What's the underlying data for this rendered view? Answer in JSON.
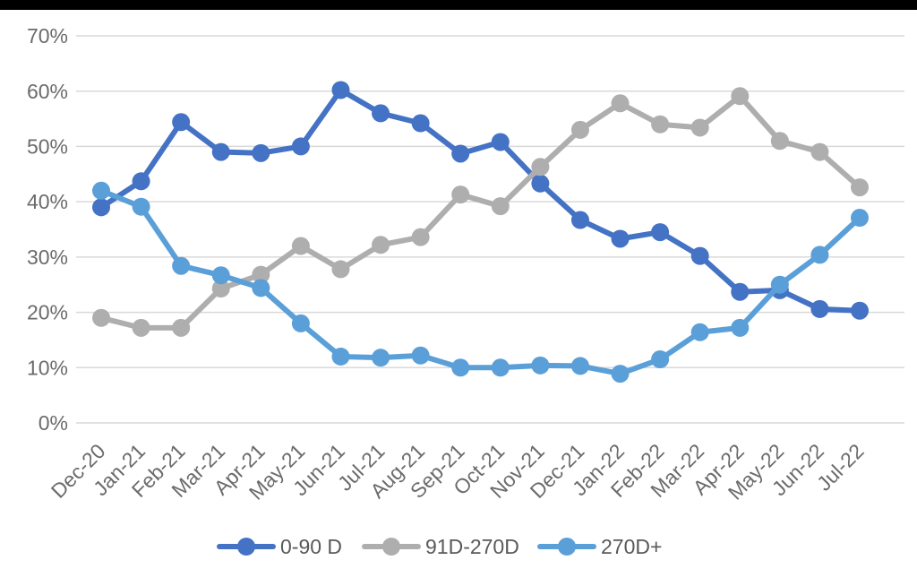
{
  "page": {
    "background_color": "#ffffff",
    "top_bar_color": "#000000"
  },
  "chart_data": {
    "type": "line",
    "title": "",
    "xlabel": "",
    "ylabel": "",
    "categories": [
      "Dec-20",
      "Jan-21",
      "Feb-21",
      "Mar-21",
      "Apr-21",
      "May-21",
      "Jun-21",
      "Jul-21",
      "Aug-21",
      "Sep-21",
      "Oct-21",
      "Nov-21",
      "Dec-21",
      "Jan-22",
      "Feb-22",
      "Mar-22",
      "Apr-22",
      "May-22",
      "Jun-22",
      "Jul-22"
    ],
    "series": [
      {
        "name": "0-90 D",
        "color": "#4472C4",
        "values": [
          39.0,
          43.7,
          54.4,
          49.0,
          48.8,
          50.0,
          60.2,
          56.0,
          54.2,
          48.7,
          50.8,
          43.3,
          36.7,
          33.3,
          34.5,
          30.2,
          23.7,
          24.0,
          20.6,
          20.3
        ]
      },
      {
        "name": "91D-270D",
        "color": "#AEAEAE",
        "values": [
          19.0,
          17.2,
          17.2,
          24.3,
          26.8,
          32.0,
          27.8,
          32.2,
          33.6,
          41.3,
          39.2,
          46.3,
          53.0,
          57.8,
          54.0,
          53.4,
          59.1,
          51.0,
          49.0,
          42.6
        ]
      },
      {
        "name": "270D+",
        "color": "#5B9FD8",
        "values": [
          42.0,
          39.1,
          28.4,
          26.7,
          24.4,
          18.0,
          12.0,
          11.8,
          12.2,
          10.0,
          10.0,
          10.4,
          10.3,
          8.9,
          11.5,
          16.4,
          17.2,
          25.0,
          30.4,
          37.1
        ]
      }
    ],
    "ylim": [
      0,
      70
    ],
    "ytick_step": 10,
    "ytick_labels": [
      "0%",
      "10%",
      "20%",
      "30%",
      "40%",
      "50%",
      "60%",
      "70%"
    ],
    "grid": true,
    "gridline_color": "#d9d9d9",
    "axis_label_color": "#6b6b6b",
    "legend_label_color": "#595959",
    "legend_position": "bottom"
  }
}
